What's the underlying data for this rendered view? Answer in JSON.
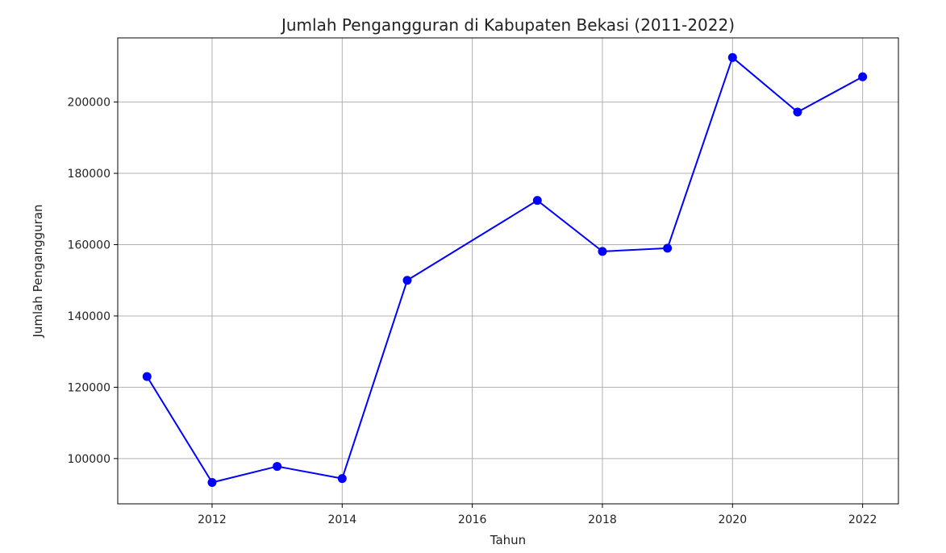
{
  "chart_data": {
    "type": "line",
    "title": "Jumlah Pengangguran di Kabupaten Bekasi (2011-2022)",
    "xlabel": "Tahun",
    "ylabel": "Jumlah Pengangguran",
    "xlim": [
      2010.55,
      2022.55
    ],
    "ylim": [
      87300,
      218000
    ],
    "x_ticks": [
      2012,
      2014,
      2016,
      2018,
      2020,
      2022
    ],
    "x_tick_labels": [
      "2012",
      "2014",
      "2016",
      "2018",
      "2020",
      "2022"
    ],
    "y_ticks": [
      100000,
      120000,
      140000,
      160000,
      180000,
      200000
    ],
    "y_tick_labels": [
      "100000",
      "120000",
      "140000",
      "160000",
      "180000",
      "200000"
    ],
    "grid": true,
    "series": [
      {
        "color": "#0000ff",
        "marker": "circle",
        "x": [
          2011,
          2012,
          2013,
          2014,
          2015,
          2017,
          2018,
          2019,
          2020,
          2021,
          2022
        ],
        "y": [
          123000,
          93300,
          97800,
          94400,
          150000,
          172400,
          158100,
          159000,
          212500,
          197200,
          207100
        ]
      }
    ]
  }
}
